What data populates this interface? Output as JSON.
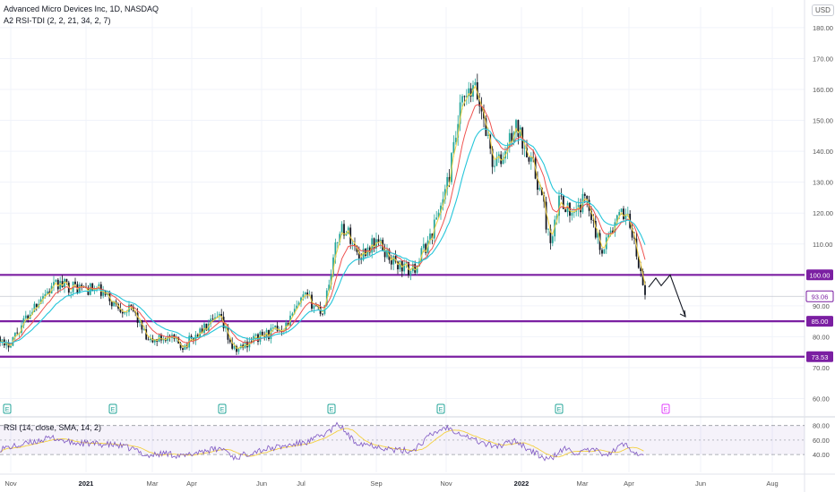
{
  "header": {
    "symbol_title": "Advanced Micro Devices Inc, 1D, NASDAQ",
    "indicator_title": "A2 RSI-TDI (2, 2, 21, 34, 2, 7)",
    "currency": "USD"
  },
  "rsi_pane": {
    "title": "RSI (14, close, SMA, 14, 2)",
    "ticks": [
      "80.00",
      "60.00",
      "40.00"
    ]
  },
  "colors": {
    "candle_up": "#26a69a",
    "candle_down": "#131722",
    "level_line": "#7b1fa2",
    "ema_fast": "#f4d03f",
    "ema_mid": "#ef5350",
    "ema_slow": "#26c6da",
    "rsi_line": "#7e57c2",
    "rsi_signal": "#f4d03f",
    "current_price_tag": "#7b1fa2"
  },
  "event_markers": [
    {
      "label": "E",
      "color": "#26a69a"
    },
    {
      "label": "E",
      "color": "#26a69a"
    },
    {
      "label": "E",
      "color": "#26a69a"
    },
    {
      "label": "E",
      "color": "#26a69a"
    },
    {
      "label": "E",
      "color": "#26a69a"
    },
    {
      "label": "E",
      "color": "#26a69a"
    },
    {
      "label": "E",
      "color": "#e040fb"
    }
  ],
  "chart_data": {
    "type": "candlestick",
    "title": "Advanced Micro Devices Inc, 1D, NASDAQ",
    "ylim": [
      55,
      185
    ],
    "y_ticks": [
      "180.00",
      "170.00",
      "160.00",
      "150.00",
      "140.00",
      "130.00",
      "120.00",
      "110.00",
      "90.00",
      "80.00",
      "70.00",
      "60.00"
    ],
    "x_ticks": [
      "Nov",
      "2021",
      "Mar",
      "Apr",
      "Jun",
      "Jul",
      "Sep",
      "Nov",
      "2022",
      "Mar",
      "Apr",
      "Jun",
      "Aug"
    ],
    "x_tick_bold": [
      "2021",
      "2022"
    ],
    "horizontal_levels": [
      {
        "value": 100.0,
        "label": "100.00"
      },
      {
        "value": 85.0,
        "label": "85.00"
      },
      {
        "value": 73.53,
        "label": "73.53"
      }
    ],
    "current_price": {
      "value": 93.06,
      "label": "93.06"
    },
    "projection_path": [
      96,
      99,
      96.5,
      100,
      86.5
    ],
    "price_anchors": [
      [
        0,
        80
      ],
      [
        5,
        76
      ],
      [
        20,
        82
      ],
      [
        45,
        93
      ],
      [
        65,
        97
      ],
      [
        85,
        96
      ],
      [
        110,
        95
      ],
      [
        130,
        90
      ],
      [
        150,
        88
      ],
      [
        165,
        78
      ],
      [
        185,
        80
      ],
      [
        205,
        77
      ],
      [
        225,
        82
      ],
      [
        245,
        86
      ],
      [
        262,
        75
      ],
      [
        280,
        79
      ],
      [
        300,
        81
      ],
      [
        320,
        84
      ],
      [
        340,
        93
      ],
      [
        360,
        88
      ],
      [
        380,
        116
      ],
      [
        390,
        113
      ],
      [
        400,
        106
      ],
      [
        420,
        111
      ],
      [
        440,
        104
      ],
      [
        460,
        101
      ],
      [
        480,
        112
      ],
      [
        500,
        130
      ],
      [
        515,
        155
      ],
      [
        530,
        160
      ],
      [
        540,
        151
      ],
      [
        550,
        136
      ],
      [
        560,
        137
      ],
      [
        575,
        148
      ],
      [
        590,
        140
      ],
      [
        605,
        125
      ],
      [
        615,
        108
      ],
      [
        625,
        126
      ],
      [
        640,
        118
      ],
      [
        655,
        126
      ],
      [
        670,
        108
      ],
      [
        690,
        118
      ],
      [
        700,
        121
      ],
      [
        712,
        104
      ],
      [
        720,
        93
      ]
    ],
    "rsi": {
      "ylim": [
        25,
        90
      ],
      "anchors": [
        [
          0,
          48
        ],
        [
          20,
          52
        ],
        [
          45,
          60
        ],
        [
          60,
          63
        ],
        [
          80,
          56
        ],
        [
          100,
          55
        ],
        [
          130,
          53
        ],
        [
          150,
          47
        ],
        [
          165,
          38
        ],
        [
          185,
          42
        ],
        [
          205,
          37
        ],
        [
          225,
          45
        ],
        [
          250,
          48
        ],
        [
          262,
          35
        ],
        [
          285,
          45
        ],
        [
          320,
          52
        ],
        [
          345,
          58
        ],
        [
          365,
          70
        ],
        [
          378,
          82
        ],
        [
          395,
          58
        ],
        [
          420,
          52
        ],
        [
          440,
          46
        ],
        [
          460,
          45
        ],
        [
          480,
          66
        ],
        [
          497,
          78
        ],
        [
          510,
          72
        ],
        [
          530,
          60
        ],
        [
          545,
          53
        ],
        [
          560,
          52
        ],
        [
          575,
          60
        ],
        [
          590,
          47
        ],
        [
          612,
          32
        ],
        [
          630,
          48
        ],
        [
          645,
          42
        ],
        [
          660,
          46
        ],
        [
          680,
          40
        ],
        [
          695,
          55
        ],
        [
          708,
          45
        ],
        [
          720,
          35
        ]
      ],
      "signal_smoothing": 14
    }
  }
}
